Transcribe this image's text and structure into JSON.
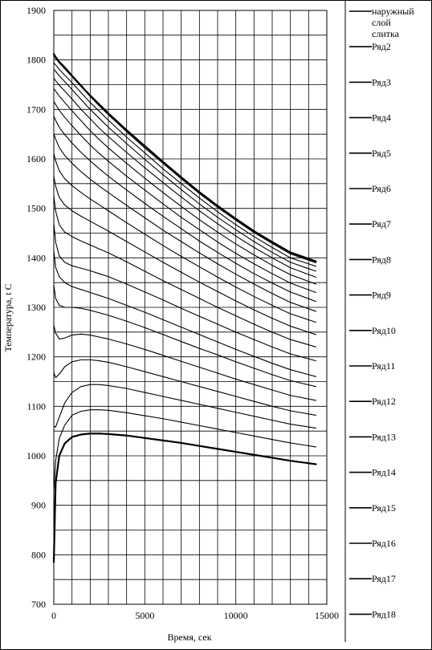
{
  "chart_data": {
    "type": "line",
    "title": "",
    "xlabel": "Время, сек",
    "ylabel": "Температура, t С",
    "xlim": [
      0,
      15000
    ],
    "ylim": [
      700,
      1900
    ],
    "x_ticks": [
      0,
      5000,
      10000,
      15000
    ],
    "y_ticks": [
      700,
      800,
      900,
      1000,
      1100,
      1200,
      1300,
      1400,
      1500,
      1600,
      1700,
      1800,
      1900
    ],
    "x_gridlines": [
      1000,
      2000,
      3000,
      4000,
      5000,
      6000,
      7000,
      8000,
      9000,
      10000,
      11000,
      12000,
      13000,
      14000
    ],
    "y_gridlines": [
      750,
      800,
      850,
      900,
      950,
      1000,
      1050,
      1100,
      1150,
      1200,
      1250,
      1300,
      1350,
      1400,
      1450,
      1500,
      1550,
      1600,
      1650,
      1700,
      1750,
      1800,
      1850
    ],
    "grid": true,
    "legend_position": "right",
    "x": [
      0,
      100,
      300,
      600,
      1000,
      1500,
      2000,
      2500,
      3000,
      4000,
      5000,
      6000,
      7000,
      8000,
      9000,
      10000,
      11000,
      12000,
      13000,
      14400
    ],
    "series": [
      {
        "name": "наружный слой слитка",
        "values": [
          1812,
          1806,
          1796,
          1785,
          1768,
          1748,
          1728,
          1710,
          1692,
          1658,
          1626,
          1594,
          1563,
          1533,
          1505,
          1479,
          1454,
          1432,
          1411,
          1393
        ]
      },
      {
        "name": "Ряд2",
        "values": [
          1808,
          1803,
          1794,
          1782,
          1766,
          1746,
          1726,
          1707,
          1689,
          1655,
          1622,
          1591,
          1560,
          1530,
          1502,
          1476,
          1451,
          1429,
          1408,
          1390
        ]
      },
      {
        "name": "Ряд3",
        "values": [
          1794,
          1790,
          1781,
          1769,
          1754,
          1734,
          1714,
          1696,
          1678,
          1644,
          1612,
          1580,
          1550,
          1521,
          1493,
          1467,
          1443,
          1421,
          1400,
          1383
        ]
      },
      {
        "name": "Ряд4",
        "values": [
          1781,
          1777,
          1768,
          1756,
          1740,
          1720,
          1700,
          1682,
          1664,
          1631,
          1599,
          1568,
          1538,
          1509,
          1482,
          1457,
          1433,
          1411,
          1391,
          1373
        ]
      },
      {
        "name": "Ряд5",
        "values": [
          1763,
          1758,
          1749,
          1737,
          1721,
          1700,
          1681,
          1662,
          1645,
          1613,
          1582,
          1552,
          1523,
          1495,
          1469,
          1444,
          1421,
          1400,
          1380,
          1361
        ]
      },
      {
        "name": "Ряд6",
        "values": [
          1742,
          1737,
          1727,
          1714,
          1697,
          1677,
          1657,
          1639,
          1622,
          1591,
          1561,
          1532,
          1504,
          1477,
          1452,
          1428,
          1406,
          1385,
          1366,
          1347
        ]
      },
      {
        "name": "Ряд7",
        "values": [
          1716,
          1710,
          1698,
          1684,
          1667,
          1647,
          1628,
          1611,
          1595,
          1565,
          1537,
          1509,
          1482,
          1457,
          1432,
          1409,
          1388,
          1368,
          1349,
          1330
        ]
      },
      {
        "name": "Ряд8",
        "values": [
          1686,
          1678,
          1664,
          1649,
          1632,
          1613,
          1596,
          1580,
          1565,
          1537,
          1510,
          1484,
          1459,
          1434,
          1411,
          1389,
          1368,
          1349,
          1331,
          1312
        ]
      },
      {
        "name": "Ряд9",
        "values": [
          1651,
          1640,
          1623,
          1607,
          1591,
          1574,
          1559,
          1545,
          1532,
          1506,
          1481,
          1456,
          1433,
          1410,
          1388,
          1367,
          1347,
          1328,
          1310,
          1292
        ]
      },
      {
        "name": "Ряд10",
        "values": [
          1611,
          1596,
          1576,
          1560,
          1546,
          1532,
          1519,
          1507,
          1495,
          1471,
          1448,
          1425,
          1403,
          1382,
          1361,
          1341,
          1322,
          1304,
          1287,
          1270
        ]
      },
      {
        "name": "Ряд11",
        "values": [
          1565,
          1545,
          1522,
          1507,
          1495,
          1484,
          1474,
          1464,
          1454,
          1433,
          1412,
          1391,
          1371,
          1351,
          1332,
          1313,
          1295,
          1278,
          1262,
          1245
        ]
      },
      {
        "name": "Ряд12",
        "values": [
          1525,
          1495,
          1467,
          1452,
          1443,
          1434,
          1426,
          1418,
          1410,
          1392,
          1373,
          1354,
          1336,
          1318,
          1300,
          1283,
          1266,
          1250,
          1235,
          1220
        ]
      },
      {
        "name": "Ряд13",
        "values": [
          1470,
          1432,
          1404,
          1391,
          1384,
          1379,
          1374,
          1368,
          1362,
          1347,
          1331,
          1315,
          1298,
          1282,
          1266,
          1250,
          1235,
          1220,
          1206,
          1192
        ]
      },
      {
        "name": "Ряд14",
        "values": [
          1414,
          1381,
          1362,
          1350,
          1342,
          1336,
          1330,
          1324,
          1318,
          1304,
          1290,
          1275,
          1260,
          1245,
          1230,
          1215,
          1201,
          1187,
          1174,
          1160
        ]
      },
      {
        "name": "Ряд15",
        "values": [
          1345,
          1318,
          1304,
          1300,
          1300,
          1298,
          1294,
          1289,
          1284,
          1272,
          1259,
          1245,
          1231,
          1217,
          1204,
          1190,
          1177,
          1164,
          1152,
          1140
        ]
      },
      {
        "name": "Ряд16",
        "values": [
          1264,
          1248,
          1236,
          1238,
          1244,
          1246,
          1244,
          1240,
          1236,
          1226,
          1215,
          1203,
          1191,
          1179,
          1167,
          1155,
          1144,
          1133,
          1122,
          1112
        ]
      },
      {
        "name": "Ряд17",
        "values": [
          1168,
          1158,
          1165,
          1180,
          1190,
          1194,
          1194,
          1192,
          1189,
          1180,
          1170,
          1160,
          1150,
          1140,
          1130,
          1120,
          1110,
          1100,
          1091,
          1082
        ]
      },
      {
        "name": "Ряд18",
        "values": [
          1060,
          1058,
          1078,
          1107,
          1128,
          1140,
          1144,
          1144,
          1142,
          1136,
          1128,
          1120,
          1112,
          1104,
          1096,
          1088,
          1080,
          1072,
          1064,
          1056
        ]
      },
      {
        "name": "",
        "values": [
          930,
          990,
          1035,
          1062,
          1082,
          1090,
          1093,
          1093,
          1092,
          1087,
          1081,
          1075,
          1068,
          1061,
          1054,
          1047,
          1040,
          1033,
          1026,
          1018
        ]
      },
      {
        "name": "",
        "values": [
          785,
          945,
          1000,
          1025,
          1038,
          1043,
          1045,
          1045,
          1044,
          1041,
          1036,
          1031,
          1026,
          1020,
          1014,
          1008,
          1002,
          996,
          990,
          983
        ]
      }
    ]
  }
}
